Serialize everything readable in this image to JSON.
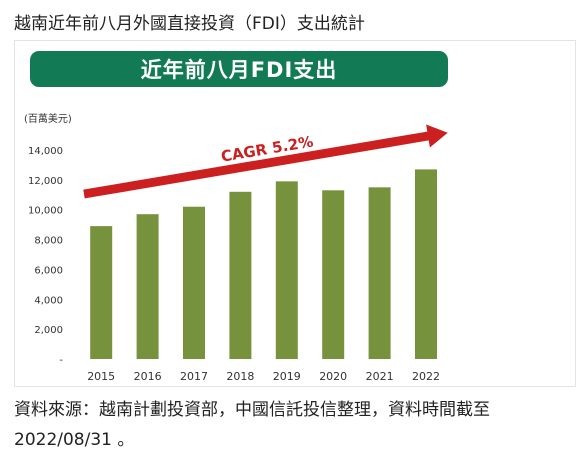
{
  "page_title": "越南近年前八月外國直接投資（FDI）支出統計",
  "source_note": "資料來源：越南計劃投資部，中國信託投信整理，資料時間截至2022/08/31 。",
  "chart_data": {
    "type": "bar",
    "title": "近年前八月FDI支出",
    "unit_label": "(百萬美元)",
    "categories": [
      "2015",
      "2016",
      "2017",
      "2018",
      "2019",
      "2020",
      "2021",
      "2022"
    ],
    "values": [
      8900,
      9700,
      10200,
      11200,
      11900,
      11300,
      11500,
      12700
    ],
    "ylim": [
      0,
      14000
    ],
    "y_ticks": [
      0,
      2000,
      4000,
      6000,
      8000,
      10000,
      12000,
      14000
    ],
    "y_tick_labels": [
      "-",
      "2,000",
      "4,000",
      "6,000",
      "8,000",
      "10,000",
      "12,000",
      "14,000"
    ],
    "grid": false,
    "annotation": "CAGR 5.2%",
    "colors": {
      "bar": "#76923c",
      "banner": "#137a56",
      "arrow": "#cc1f1f"
    }
  }
}
